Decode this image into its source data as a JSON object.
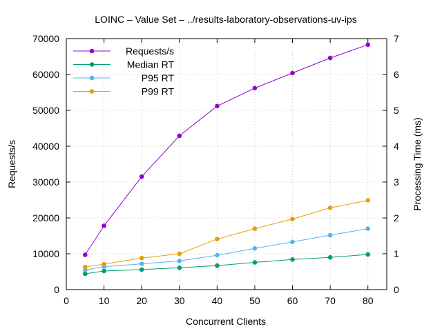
{
  "chart_data": {
    "type": "line",
    "title": "LOINC – Value Set – ../results-laboratory-observations-uv-ips",
    "xlabel": "Concurrent Clients",
    "ylabel": "Requests/s",
    "y2label": "Processing Time (ms)",
    "xlim": [
      0,
      85
    ],
    "ylim": [
      0,
      70000
    ],
    "y2lim": [
      0,
      7
    ],
    "xticks": [
      0,
      10,
      20,
      30,
      40,
      50,
      60,
      70,
      80
    ],
    "yticks": [
      0,
      10000,
      20000,
      30000,
      40000,
      50000,
      60000,
      70000
    ],
    "y2ticks": [
      0,
      1,
      2,
      3,
      4,
      5,
      6,
      7
    ],
    "grid": true,
    "legend_position": "top-left",
    "x": [
      5,
      10,
      20,
      30,
      40,
      50,
      60,
      70,
      80
    ],
    "series": [
      {
        "name": "Requests/s",
        "axis": "left",
        "color": "#9400d3",
        "values": [
          9700,
          17800,
          31500,
          42900,
          51200,
          56200,
          60400,
          64600,
          68300
        ]
      },
      {
        "name": "Median RT",
        "axis": "right",
        "color": "#009e73",
        "values": [
          0.44,
          0.52,
          0.56,
          0.61,
          0.67,
          0.76,
          0.84,
          0.9,
          0.98
        ]
      },
      {
        "name": "P95 RT",
        "axis": "right",
        "color": "#56b4e9",
        "values": [
          0.55,
          0.64,
          0.72,
          0.8,
          0.96,
          1.15,
          1.33,
          1.52,
          1.7
        ]
      },
      {
        "name": "P99 RT",
        "axis": "right",
        "color": "#e69f00",
        "values": [
          0.63,
          0.71,
          0.88,
          1.0,
          1.41,
          1.7,
          1.97,
          2.28,
          2.49
        ]
      }
    ]
  }
}
